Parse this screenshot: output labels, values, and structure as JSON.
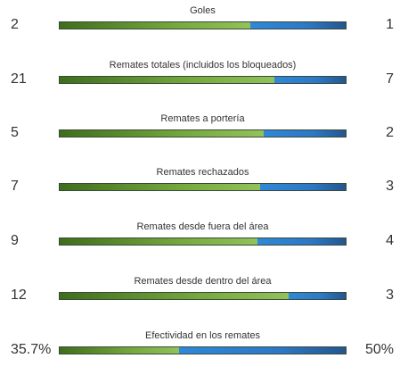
{
  "stats": [
    {
      "label": "Goles",
      "home": "2",
      "away": "1",
      "home_share": 0.667
    },
    {
      "label": "Remates totales (incluidos los bloqueados)",
      "home": "21",
      "away": "7",
      "home_share": 0.75
    },
    {
      "label": "Remates a portería",
      "home": "5",
      "away": "2",
      "home_share": 0.714
    },
    {
      "label": "Remates rechazados",
      "home": "7",
      "away": "3",
      "home_share": 0.7
    },
    {
      "label": "Remates desde fuera del área",
      "home": "9",
      "away": "4",
      "home_share": 0.692
    },
    {
      "label": "Remates desde dentro del área",
      "home": "12",
      "away": "3",
      "home_share": 0.8
    },
    {
      "label": "Efectividad en los remates",
      "home": "35.7%",
      "away": "50%",
      "home_share": 0.417
    }
  ],
  "colors": {
    "home_bar": "#74a83c",
    "away_bar": "#2c78c6",
    "text": "#333333"
  }
}
